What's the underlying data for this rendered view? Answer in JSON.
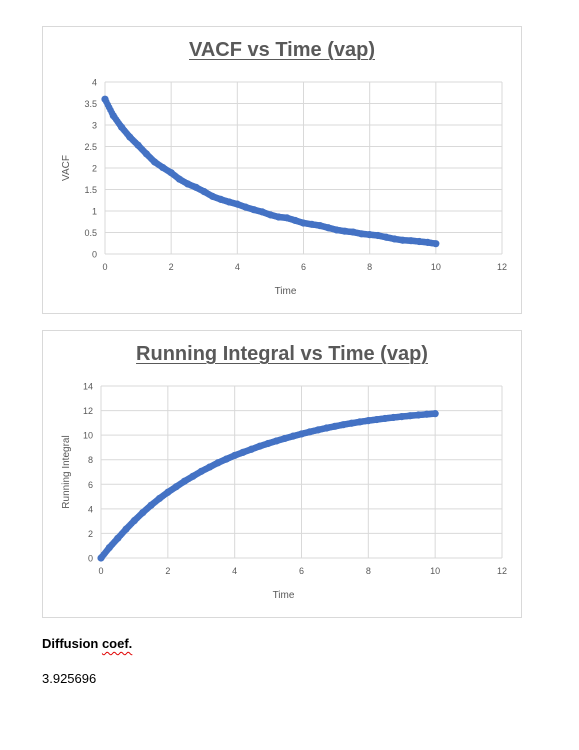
{
  "chart_data": [
    {
      "type": "scatter",
      "title": "VACF vs Time (vap)",
      "xlabel": "Time",
      "ylabel": "VACF",
      "xlim": [
        0,
        12
      ],
      "ylim": [
        0,
        4
      ],
      "xticks": [
        "0",
        "2",
        "4",
        "6",
        "8",
        "10",
        "12"
      ],
      "yticks": [
        "0",
        "0.5",
        "1",
        "1.5",
        "2",
        "2.5",
        "3",
        "3.5",
        "4"
      ],
      "grid": true,
      "series_color": "#4472c4",
      "x": [
        0,
        0.25,
        0.5,
        0.75,
        1,
        1.25,
        1.5,
        1.75,
        2,
        2.25,
        2.5,
        2.75,
        3,
        3.25,
        3.5,
        3.75,
        4,
        4.25,
        4.5,
        4.75,
        5,
        5.25,
        5.5,
        5.75,
        6,
        6.25,
        6.5,
        6.75,
        7,
        7.25,
        7.5,
        7.75,
        8,
        8.25,
        8.5,
        8.75,
        9,
        9.25,
        9.5,
        9.75,
        10
      ],
      "y": [
        3.6,
        3.22,
        2.95,
        2.72,
        2.53,
        2.33,
        2.14,
        2.01,
        1.89,
        1.74,
        1.63,
        1.55,
        1.45,
        1.34,
        1.27,
        1.21,
        1.16,
        1.09,
        1.03,
        0.98,
        0.91,
        0.86,
        0.84,
        0.78,
        0.72,
        0.69,
        0.66,
        0.61,
        0.56,
        0.53,
        0.51,
        0.47,
        0.45,
        0.43,
        0.39,
        0.35,
        0.32,
        0.31,
        0.29,
        0.27,
        0.24
      ]
    },
    {
      "type": "scatter",
      "title": "Running Integral vs Time (vap)",
      "xlabel": "Time",
      "ylabel": "Running Integral",
      "xlim": [
        0,
        12
      ],
      "ylim": [
        0,
        14
      ],
      "xticks": [
        "0",
        "2",
        "4",
        "6",
        "8",
        "10",
        "12"
      ],
      "yticks": [
        "0",
        "2",
        "4",
        "6",
        "8",
        "10",
        "12",
        "14"
      ],
      "grid": true,
      "series_color": "#4472c4",
      "x": [
        0,
        0.25,
        0.5,
        0.75,
        1,
        1.25,
        1.5,
        1.75,
        2,
        2.25,
        2.5,
        2.75,
        3,
        3.25,
        3.5,
        3.75,
        4,
        4.25,
        4.5,
        4.75,
        5,
        5.25,
        5.5,
        5.75,
        6,
        6.25,
        6.5,
        6.75,
        7,
        7.25,
        7.5,
        7.75,
        8,
        8.25,
        8.5,
        8.75,
        9,
        9.25,
        9.5,
        9.75,
        10
      ],
      "y": [
        0,
        0.85,
        1.6,
        2.35,
        3.05,
        3.7,
        4.3,
        4.85,
        5.35,
        5.8,
        6.25,
        6.65,
        7.05,
        7.4,
        7.75,
        8.05,
        8.35,
        8.6,
        8.85,
        9.1,
        9.32,
        9.53,
        9.73,
        9.92,
        10.1,
        10.27,
        10.43,
        10.58,
        10.72,
        10.85,
        10.97,
        11.08,
        11.18,
        11.27,
        11.36,
        11.44,
        11.51,
        11.58,
        11.64,
        11.7,
        11.75
      ]
    }
  ],
  "diffusion": {
    "label": "Diffusion coef.",
    "label_main": "Diffusion ",
    "label_squiggle": "coef.",
    "value": "3.925696"
  }
}
